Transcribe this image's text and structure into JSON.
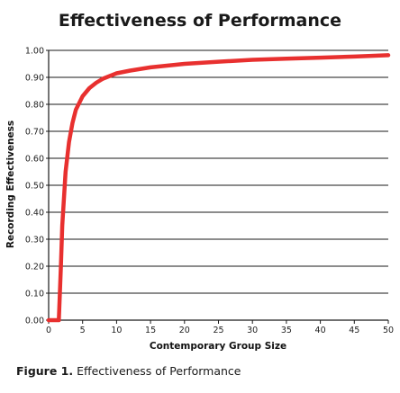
{
  "chart_data": {
    "type": "line",
    "title": "Effectiveness of Performance",
    "xlabel": "Contemporary Group Size",
    "ylabel": "Recording Effectiveness",
    "xlim": [
      0,
      50
    ],
    "ylim": [
      0,
      1.0
    ],
    "x_ticks": [
      0,
      5,
      10,
      15,
      20,
      25,
      30,
      35,
      40,
      45,
      50
    ],
    "y_ticks": [
      "0.00",
      "0.10",
      "0.20",
      "0.30",
      "0.40",
      "0.50",
      "0.60",
      "0.70",
      "0.80",
      "0.90",
      "1.00"
    ],
    "grid": "horizontal",
    "series": [
      {
        "color": "#e8302f",
        "x": [
          0,
          1,
          1.5,
          1.8,
          2,
          2.5,
          3,
          3.5,
          4,
          5,
          6,
          7,
          8,
          10,
          12,
          15,
          20,
          25,
          30,
          35,
          40,
          45,
          50
        ],
        "y": [
          0.0,
          0.0,
          0.0,
          0.2,
          0.35,
          0.55,
          0.66,
          0.73,
          0.78,
          0.83,
          0.86,
          0.88,
          0.895,
          0.915,
          0.925,
          0.937,
          0.95,
          0.958,
          0.965,
          0.969,
          0.973,
          0.977,
          0.982
        ]
      }
    ]
  },
  "caption": {
    "figure_label": "Figure 1.",
    "text": "Effectiveness of Performance"
  }
}
